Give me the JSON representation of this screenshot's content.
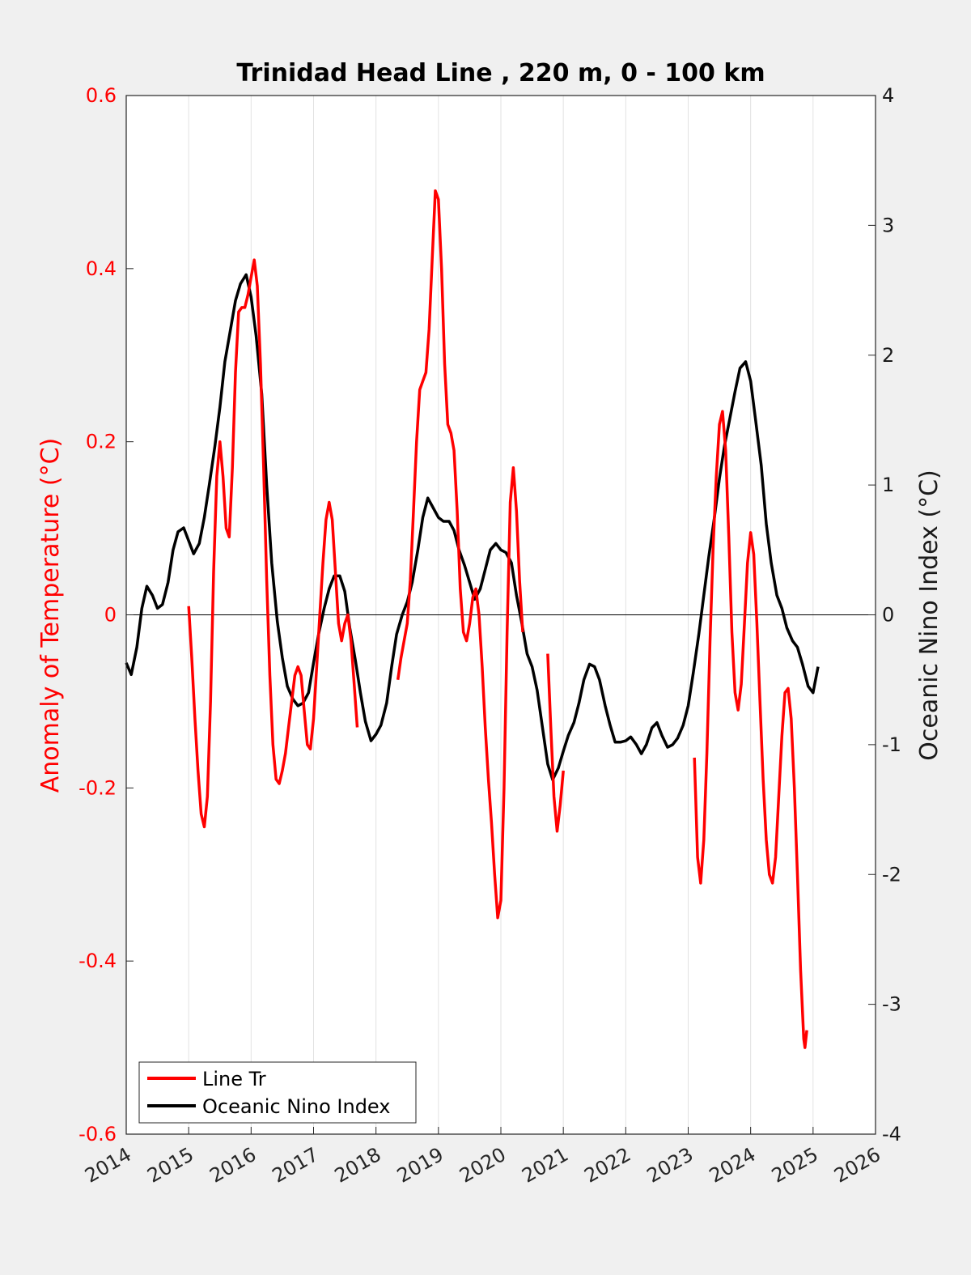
{
  "chart_data": {
    "type": "line",
    "title": "Trinidad Head Line , 220 m, 0 - 100 km",
    "xlabel": "",
    "ylabel_left": "Anomaly of Temperature (°C)",
    "ylabel_right": "Oceanic Nino Index (°C)",
    "xlim": [
      2014,
      2026
    ],
    "ylim_left": [
      -0.6,
      0.6
    ],
    "ylim_right": [
      -4,
      4
    ],
    "x_ticks": [
      "2014",
      "2015",
      "2016",
      "2017",
      "2018",
      "2019",
      "2020",
      "2021",
      "2022",
      "2023",
      "2024",
      "2025",
      "2026"
    ],
    "y_ticks_left": [
      "-0.6",
      "-0.4",
      "-0.2",
      "0",
      "0.2",
      "0.4",
      "0.6"
    ],
    "y_ticks_right": [
      "-4",
      "-3",
      "-2",
      "-1",
      "0",
      "1",
      "2",
      "3",
      "4"
    ],
    "grid": "vertical",
    "legend_position": "bottom-left",
    "series": [
      {
        "name": "Line Tr",
        "axis": "left",
        "color": "#ff0000",
        "segments": [
          [
            [
              2015.0,
              0.01
            ],
            [
              2015.05,
              -0.05
            ],
            [
              2015.1,
              -0.12
            ],
            [
              2015.15,
              -0.18
            ],
            [
              2015.2,
              -0.23
            ],
            [
              2015.25,
              -0.245
            ],
            [
              2015.3,
              -0.21
            ],
            [
              2015.35,
              -0.1
            ],
            [
              2015.4,
              0.05
            ],
            [
              2015.45,
              0.16
            ],
            [
              2015.5,
              0.2
            ],
            [
              2015.55,
              0.16
            ],
            [
              2015.6,
              0.1
            ],
            [
              2015.65,
              0.09
            ],
            [
              2015.7,
              0.17
            ],
            [
              2015.75,
              0.28
            ],
            [
              2015.8,
              0.35
            ],
            [
              2015.85,
              0.355
            ],
            [
              2015.9,
              0.355
            ],
            [
              2015.95,
              0.37
            ],
            [
              2016.0,
              0.39
            ],
            [
              2016.05,
              0.41
            ],
            [
              2016.1,
              0.38
            ],
            [
              2016.15,
              0.29
            ],
            [
              2016.2,
              0.17
            ],
            [
              2016.25,
              0.04
            ],
            [
              2016.3,
              -0.07
            ],
            [
              2016.35,
              -0.15
            ],
            [
              2016.4,
              -0.19
            ],
            [
              2016.45,
              -0.195
            ],
            [
              2016.5,
              -0.18
            ],
            [
              2016.55,
              -0.16
            ],
            [
              2016.6,
              -0.13
            ],
            [
              2016.65,
              -0.1
            ],
            [
              2016.7,
              -0.07
            ],
            [
              2016.75,
              -0.06
            ],
            [
              2016.8,
              -0.07
            ],
            [
              2016.85,
              -0.11
            ],
            [
              2016.9,
              -0.15
            ],
            [
              2016.95,
              -0.155
            ],
            [
              2017.0,
              -0.12
            ],
            [
              2017.05,
              -0.06
            ],
            [
              2017.1,
              0.0
            ],
            [
              2017.15,
              0.06
            ],
            [
              2017.2,
              0.11
            ],
            [
              2017.25,
              0.13
            ],
            [
              2017.3,
              0.11
            ],
            [
              2017.35,
              0.05
            ],
            [
              2017.4,
              -0.01
            ],
            [
              2017.45,
              -0.03
            ],
            [
              2017.5,
              -0.01
            ],
            [
              2017.55,
              0.0
            ],
            [
              2017.6,
              -0.03
            ],
            [
              2017.65,
              -0.08
            ],
            [
              2017.7,
              -0.13
            ]
          ],
          [
            [
              2018.35,
              -0.075
            ],
            [
              2018.4,
              -0.05
            ],
            [
              2018.45,
              -0.03
            ],
            [
              2018.5,
              -0.01
            ],
            [
              2018.55,
              0.04
            ],
            [
              2018.6,
              0.12
            ],
            [
              2018.65,
              0.2
            ],
            [
              2018.7,
              0.26
            ],
            [
              2018.75,
              0.27
            ],
            [
              2018.8,
              0.28
            ],
            [
              2018.85,
              0.33
            ],
            [
              2018.9,
              0.41
            ],
            [
              2018.95,
              0.49
            ],
            [
              2019.0,
              0.48
            ],
            [
              2019.05,
              0.4
            ],
            [
              2019.1,
              0.29
            ],
            [
              2019.15,
              0.22
            ],
            [
              2019.2,
              0.21
            ],
            [
              2019.25,
              0.19
            ],
            [
              2019.3,
              0.12
            ],
            [
              2019.35,
              0.03
            ],
            [
              2019.4,
              -0.02
            ],
            [
              2019.45,
              -0.03
            ],
            [
              2019.5,
              -0.01
            ],
            [
              2019.55,
              0.02
            ],
            [
              2019.6,
              0.03
            ],
            [
              2019.65,
              0.0
            ],
            [
              2019.7,
              -0.06
            ],
            [
              2019.75,
              -0.13
            ],
            [
              2019.8,
              -0.19
            ],
            [
              2019.85,
              -0.24
            ],
            [
              2019.9,
              -0.3
            ],
            [
              2019.95,
              -0.35
            ],
            [
              2020.0,
              -0.33
            ],
            [
              2020.05,
              -0.2
            ],
            [
              2020.1,
              -0.02
            ],
            [
              2020.15,
              0.13
            ],
            [
              2020.2,
              0.17
            ],
            [
              2020.25,
              0.12
            ],
            [
              2020.3,
              0.04
            ],
            [
              2020.35,
              -0.02
            ]
          ],
          [
            [
              2020.75,
              -0.045
            ],
            [
              2020.8,
              -0.13
            ],
            [
              2020.85,
              -0.21
            ],
            [
              2020.9,
              -0.25
            ],
            [
              2020.95,
              -0.22
            ],
            [
              2021.0,
              -0.18
            ]
          ],
          [
            [
              2023.1,
              -0.165
            ],
            [
              2023.15,
              -0.28
            ],
            [
              2023.2,
              -0.31
            ],
            [
              2023.25,
              -0.26
            ],
            [
              2023.3,
              -0.16
            ],
            [
              2023.35,
              -0.03
            ],
            [
              2023.4,
              0.08
            ],
            [
              2023.45,
              0.16
            ],
            [
              2023.5,
              0.22
            ],
            [
              2023.55,
              0.235
            ],
            [
              2023.6,
              0.19
            ],
            [
              2023.65,
              0.09
            ],
            [
              2023.7,
              -0.02
            ],
            [
              2023.75,
              -0.09
            ],
            [
              2023.8,
              -0.11
            ],
            [
              2023.85,
              -0.08
            ],
            [
              2023.9,
              -0.01
            ],
            [
              2023.95,
              0.06
            ],
            [
              2024.0,
              0.095
            ],
            [
              2024.05,
              0.07
            ],
            [
              2024.1,
              -0.01
            ],
            [
              2024.15,
              -0.1
            ],
            [
              2024.2,
              -0.19
            ],
            [
              2024.25,
              -0.26
            ],
            [
              2024.3,
              -0.3
            ],
            [
              2024.35,
              -0.31
            ],
            [
              2024.4,
              -0.28
            ],
            [
              2024.45,
              -0.21
            ],
            [
              2024.5,
              -0.14
            ],
            [
              2024.55,
              -0.09
            ],
            [
              2024.6,
              -0.085
            ],
            [
              2024.65,
              -0.12
            ],
            [
              2024.7,
              -0.2
            ],
            [
              2024.75,
              -0.3
            ],
            [
              2024.8,
              -0.41
            ],
            [
              2024.85,
              -0.49
            ],
            [
              2024.87,
              -0.5
            ],
            [
              2024.9,
              -0.48
            ]
          ]
        ]
      },
      {
        "name": "Oceanic Nino Index",
        "axis": "right",
        "color": "#000000",
        "points": [
          [
            2014.0,
            -0.37
          ],
          [
            2014.08,
            -0.46
          ],
          [
            2014.17,
            -0.25
          ],
          [
            2014.25,
            0.05
          ],
          [
            2014.33,
            0.22
          ],
          [
            2014.42,
            0.15
          ],
          [
            2014.5,
            0.05
          ],
          [
            2014.58,
            0.08
          ],
          [
            2014.67,
            0.25
          ],
          [
            2014.75,
            0.5
          ],
          [
            2014.83,
            0.64
          ],
          [
            2014.92,
            0.67
          ],
          [
            2015.0,
            0.57
          ],
          [
            2015.08,
            0.47
          ],
          [
            2015.17,
            0.55
          ],
          [
            2015.25,
            0.75
          ],
          [
            2015.33,
            1.0
          ],
          [
            2015.42,
            1.3
          ],
          [
            2015.5,
            1.6
          ],
          [
            2015.58,
            1.95
          ],
          [
            2015.67,
            2.2
          ],
          [
            2015.75,
            2.42
          ],
          [
            2015.83,
            2.55
          ],
          [
            2015.92,
            2.62
          ],
          [
            2016.0,
            2.45
          ],
          [
            2016.08,
            2.15
          ],
          [
            2016.17,
            1.7
          ],
          [
            2016.25,
            1.0
          ],
          [
            2016.33,
            0.4
          ],
          [
            2016.42,
            -0.05
          ],
          [
            2016.5,
            -0.33
          ],
          [
            2016.58,
            -0.55
          ],
          [
            2016.67,
            -0.65
          ],
          [
            2016.75,
            -0.7
          ],
          [
            2016.83,
            -0.68
          ],
          [
            2016.92,
            -0.6
          ],
          [
            2017.0,
            -0.37
          ],
          [
            2017.08,
            -0.15
          ],
          [
            2017.17,
            0.05
          ],
          [
            2017.25,
            0.2
          ],
          [
            2017.33,
            0.3
          ],
          [
            2017.42,
            0.3
          ],
          [
            2017.5,
            0.18
          ],
          [
            2017.58,
            -0.1
          ],
          [
            2017.67,
            -0.35
          ],
          [
            2017.75,
            -0.6
          ],
          [
            2017.83,
            -0.82
          ],
          [
            2017.92,
            -0.97
          ],
          [
            2018.0,
            -0.92
          ],
          [
            2018.08,
            -0.85
          ],
          [
            2018.17,
            -0.68
          ],
          [
            2018.25,
            -0.4
          ],
          [
            2018.33,
            -0.15
          ],
          [
            2018.42,
            0.0
          ],
          [
            2018.5,
            0.1
          ],
          [
            2018.58,
            0.25
          ],
          [
            2018.67,
            0.5
          ],
          [
            2018.75,
            0.75
          ],
          [
            2018.83,
            0.9
          ],
          [
            2018.92,
            0.82
          ],
          [
            2019.0,
            0.75
          ],
          [
            2019.08,
            0.72
          ],
          [
            2019.17,
            0.72
          ],
          [
            2019.25,
            0.65
          ],
          [
            2019.33,
            0.5
          ],
          [
            2019.42,
            0.38
          ],
          [
            2019.5,
            0.25
          ],
          [
            2019.58,
            0.12
          ],
          [
            2019.67,
            0.2
          ],
          [
            2019.75,
            0.35
          ],
          [
            2019.83,
            0.5
          ],
          [
            2019.92,
            0.55
          ],
          [
            2020.0,
            0.5
          ],
          [
            2020.08,
            0.48
          ],
          [
            2020.17,
            0.4
          ],
          [
            2020.25,
            0.15
          ],
          [
            2020.33,
            -0.05
          ],
          [
            2020.42,
            -0.3
          ],
          [
            2020.5,
            -0.4
          ],
          [
            2020.58,
            -0.58
          ],
          [
            2020.67,
            -0.88
          ],
          [
            2020.75,
            -1.15
          ],
          [
            2020.83,
            -1.27
          ],
          [
            2020.92,
            -1.18
          ],
          [
            2021.0,
            -1.05
          ],
          [
            2021.08,
            -0.93
          ],
          [
            2021.17,
            -0.83
          ],
          [
            2021.25,
            -0.68
          ],
          [
            2021.33,
            -0.5
          ],
          [
            2021.42,
            -0.38
          ],
          [
            2021.5,
            -0.4
          ],
          [
            2021.58,
            -0.5
          ],
          [
            2021.67,
            -0.7
          ],
          [
            2021.75,
            -0.85
          ],
          [
            2021.83,
            -0.98
          ],
          [
            2021.92,
            -0.98
          ],
          [
            2022.0,
            -0.97
          ],
          [
            2022.08,
            -0.94
          ],
          [
            2022.17,
            -1.0
          ],
          [
            2022.25,
            -1.07
          ],
          [
            2022.33,
            -1.0
          ],
          [
            2022.42,
            -0.87
          ],
          [
            2022.5,
            -0.83
          ],
          [
            2022.58,
            -0.93
          ],
          [
            2022.67,
            -1.02
          ],
          [
            2022.75,
            -1.0
          ],
          [
            2022.83,
            -0.95
          ],
          [
            2022.92,
            -0.85
          ],
          [
            2023.0,
            -0.7
          ],
          [
            2023.08,
            -0.45
          ],
          [
            2023.17,
            -0.15
          ],
          [
            2023.25,
            0.15
          ],
          [
            2023.33,
            0.45
          ],
          [
            2023.42,
            0.75
          ],
          [
            2023.5,
            1.05
          ],
          [
            2023.58,
            1.3
          ],
          [
            2023.67,
            1.52
          ],
          [
            2023.75,
            1.72
          ],
          [
            2023.83,
            1.9
          ],
          [
            2023.92,
            1.95
          ],
          [
            2024.0,
            1.8
          ],
          [
            2024.08,
            1.5
          ],
          [
            2024.17,
            1.15
          ],
          [
            2024.25,
            0.7
          ],
          [
            2024.33,
            0.4
          ],
          [
            2024.42,
            0.15
          ],
          [
            2024.5,
            0.05
          ],
          [
            2024.58,
            -0.1
          ],
          [
            2024.67,
            -0.2
          ],
          [
            2024.75,
            -0.25
          ],
          [
            2024.83,
            -0.38
          ],
          [
            2024.92,
            -0.55
          ],
          [
            2025.0,
            -0.6
          ],
          [
            2025.08,
            -0.4
          ]
        ]
      }
    ]
  }
}
